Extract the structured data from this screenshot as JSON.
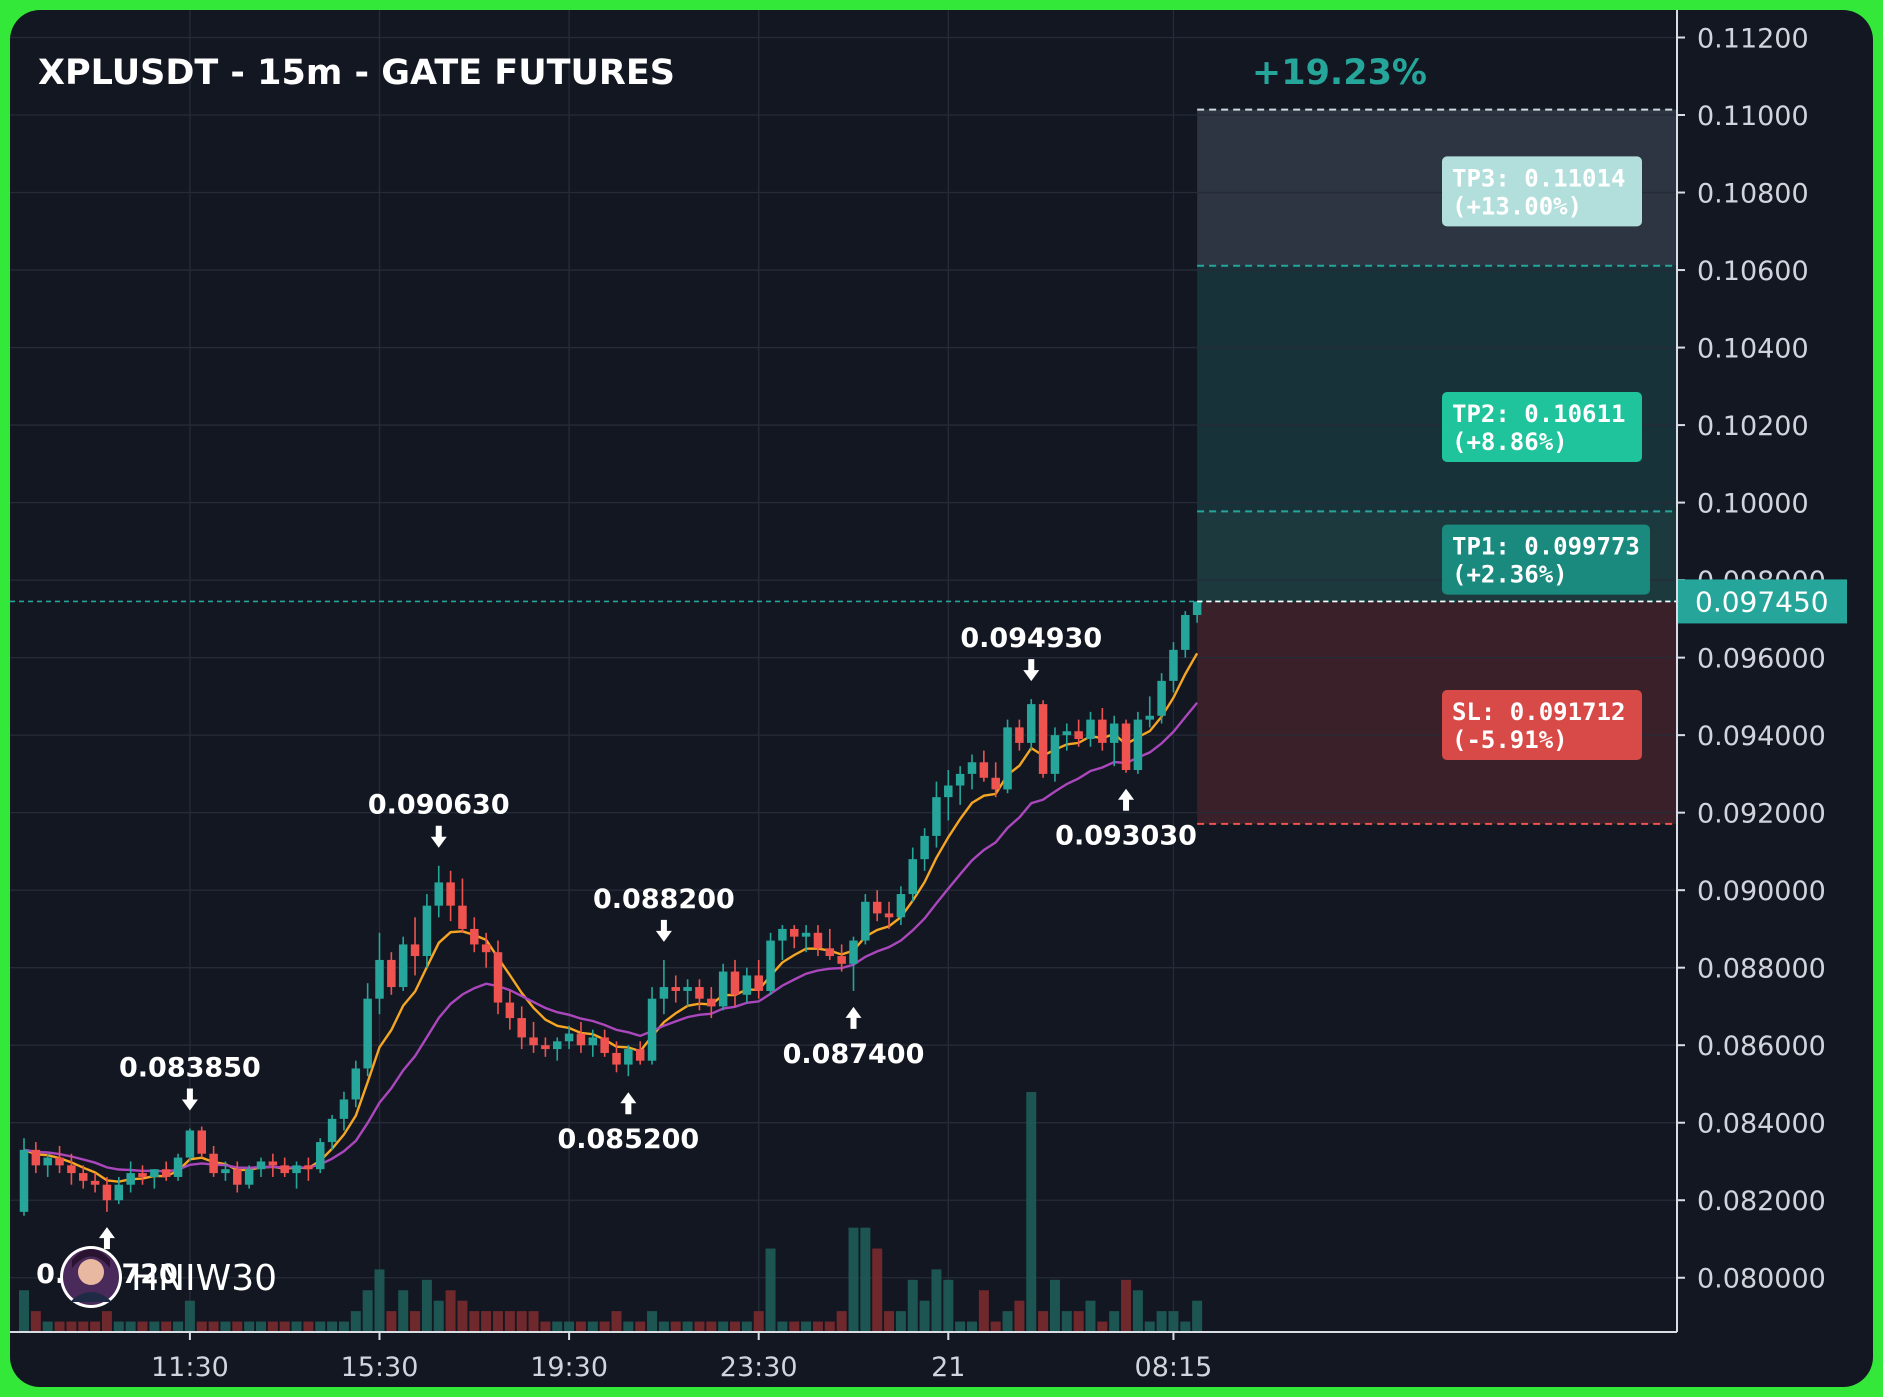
{
  "chart_data": {
    "type": "candlestick",
    "title": "XPLUSDT - 15m - GATE FUTURES",
    "gain_label": "+19.23%",
    "y_ticks": [
      "0.11200",
      "0.11000",
      "0.10800",
      "0.10600",
      "0.10400",
      "0.10200",
      "0.10000",
      "0.098000",
      "0.096000",
      "0.094000",
      "0.092000",
      "0.090000",
      "0.088000",
      "0.086000",
      "0.084000",
      "0.082000",
      "0.080000"
    ],
    "y_tick_values": [
      0.112,
      0.11,
      0.108,
      0.106,
      0.104,
      0.102,
      0.1,
      0.098,
      0.096,
      0.094,
      0.092,
      0.09,
      0.088,
      0.086,
      0.084,
      0.082,
      0.08
    ],
    "ylim": [
      0.0786,
      0.1124
    ],
    "x_ticks": [
      "11:30",
      "15:30",
      "19:30",
      "23:30",
      "21",
      "08:15"
    ],
    "x_tick_index": [
      14,
      30,
      46,
      62,
      78,
      97
    ],
    "last_price": "0.097450",
    "last_price_value": 0.09745,
    "targets": [
      {
        "name": "TP3",
        "line1": "TP3: 0.11014",
        "line2": "(+13.00%)",
        "value": 0.11014
      },
      {
        "name": "TP2",
        "line1": "TP2: 0.10611",
        "line2": "(+8.86%)",
        "value": 0.10611
      },
      {
        "name": "TP1",
        "line1": "TP1: 0.099773",
        "line2": "(+2.36%)",
        "value": 0.099773
      }
    ],
    "stop_loss": {
      "line1": "SL: 0.091712",
      "line2": "(-5.91%)",
      "value": 0.091712
    },
    "pivots": [
      {
        "label": "0.081720",
        "index": 7,
        "type": "low",
        "value": 0.08172
      },
      {
        "label": "0.083850",
        "index": 14,
        "type": "high",
        "value": 0.08385
      },
      {
        "label": "0.090630",
        "index": 35,
        "type": "high",
        "value": 0.09063
      },
      {
        "label": "0.085200",
        "index": 51,
        "type": "low",
        "value": 0.0852
      },
      {
        "label": "0.088200",
        "index": 54,
        "type": "high",
        "value": 0.0882
      },
      {
        "label": "0.087400",
        "index": 70,
        "type": "low",
        "value": 0.0874
      },
      {
        "label": "0.094930",
        "index": 85,
        "type": "high",
        "value": 0.09493
      },
      {
        "label": "0.093030",
        "index": 93,
        "type": "low",
        "value": 0.09303
      }
    ],
    "candles": [
      [
        0.0817,
        0.0836,
        0.0816,
        0.0833
      ],
      [
        0.0833,
        0.0835,
        0.0827,
        0.0829
      ],
      [
        0.0829,
        0.0832,
        0.0826,
        0.0831
      ],
      [
        0.0831,
        0.0834,
        0.0827,
        0.0829
      ],
      [
        0.0829,
        0.0832,
        0.0824,
        0.0827
      ],
      [
        0.0827,
        0.0829,
        0.0823,
        0.0825
      ],
      [
        0.0825,
        0.0827,
        0.0822,
        0.0824
      ],
      [
        0.0824,
        0.0826,
        0.0817,
        0.082
      ],
      [
        0.082,
        0.0826,
        0.0819,
        0.0824
      ],
      [
        0.0824,
        0.083,
        0.0822,
        0.0827
      ],
      [
        0.0827,
        0.0829,
        0.0824,
        0.0826
      ],
      [
        0.0826,
        0.0828,
        0.0823,
        0.0828
      ],
      [
        0.0828,
        0.083,
        0.0825,
        0.0826
      ],
      [
        0.0826,
        0.0832,
        0.0825,
        0.0831
      ],
      [
        0.0831,
        0.08385,
        0.083,
        0.0838
      ],
      [
        0.0838,
        0.0839,
        0.0831,
        0.0832
      ],
      [
        0.0832,
        0.0834,
        0.0826,
        0.0827
      ],
      [
        0.0827,
        0.083,
        0.0825,
        0.0828
      ],
      [
        0.0828,
        0.083,
        0.0822,
        0.0824
      ],
      [
        0.0824,
        0.0829,
        0.0823,
        0.0828
      ],
      [
        0.0828,
        0.0831,
        0.0826,
        0.083
      ],
      [
        0.083,
        0.0832,
        0.0826,
        0.0829
      ],
      [
        0.0829,
        0.0831,
        0.0826,
        0.0827
      ],
      [
        0.0827,
        0.083,
        0.0823,
        0.0829
      ],
      [
        0.0829,
        0.0831,
        0.0825,
        0.0828
      ],
      [
        0.0828,
        0.0836,
        0.0827,
        0.0835
      ],
      [
        0.0835,
        0.0842,
        0.0833,
        0.0841
      ],
      [
        0.0841,
        0.0848,
        0.0838,
        0.0846
      ],
      [
        0.0846,
        0.0856,
        0.0844,
        0.0854
      ],
      [
        0.0854,
        0.0876,
        0.0852,
        0.0872
      ],
      [
        0.0872,
        0.0889,
        0.0868,
        0.0882
      ],
      [
        0.0882,
        0.0884,
        0.0873,
        0.0875
      ],
      [
        0.0875,
        0.0888,
        0.0874,
        0.0886
      ],
      [
        0.0886,
        0.0893,
        0.0878,
        0.0883
      ],
      [
        0.0883,
        0.0899,
        0.088,
        0.0896
      ],
      [
        0.0896,
        0.09063,
        0.0893,
        0.0902
      ],
      [
        0.0902,
        0.0905,
        0.0892,
        0.0896
      ],
      [
        0.0896,
        0.0903,
        0.0889,
        0.089
      ],
      [
        0.089,
        0.0893,
        0.0884,
        0.0886
      ],
      [
        0.0886,
        0.0889,
        0.088,
        0.0884
      ],
      [
        0.0884,
        0.0887,
        0.0868,
        0.0871
      ],
      [
        0.0871,
        0.0874,
        0.0864,
        0.0867
      ],
      [
        0.0867,
        0.087,
        0.0859,
        0.0862
      ],
      [
        0.0862,
        0.0866,
        0.0858,
        0.086
      ],
      [
        0.086,
        0.0862,
        0.0857,
        0.0859
      ],
      [
        0.0859,
        0.0862,
        0.0856,
        0.0861
      ],
      [
        0.0861,
        0.0865,
        0.0859,
        0.0863
      ],
      [
        0.0863,
        0.0866,
        0.0858,
        0.086
      ],
      [
        0.086,
        0.0864,
        0.0857,
        0.0862
      ],
      [
        0.0862,
        0.0864,
        0.0857,
        0.0858
      ],
      [
        0.0858,
        0.0861,
        0.0853,
        0.0855
      ],
      [
        0.0855,
        0.086,
        0.0852,
        0.0859
      ],
      [
        0.0859,
        0.0861,
        0.0855,
        0.0856
      ],
      [
        0.0856,
        0.0875,
        0.0855,
        0.0872
      ],
      [
        0.0872,
        0.0882,
        0.0868,
        0.0875
      ],
      [
        0.0875,
        0.0878,
        0.0871,
        0.0874
      ],
      [
        0.0874,
        0.0877,
        0.087,
        0.0875
      ],
      [
        0.0875,
        0.0877,
        0.0869,
        0.0872
      ],
      [
        0.0872,
        0.0875,
        0.0867,
        0.087
      ],
      [
        0.087,
        0.0881,
        0.0869,
        0.0879
      ],
      [
        0.0879,
        0.0882,
        0.087,
        0.0873
      ],
      [
        0.0873,
        0.088,
        0.0871,
        0.0878
      ],
      [
        0.0878,
        0.0882,
        0.0872,
        0.0874
      ],
      [
        0.0874,
        0.0889,
        0.0873,
        0.0887
      ],
      [
        0.0887,
        0.0891,
        0.0882,
        0.089
      ],
      [
        0.089,
        0.0891,
        0.0885,
        0.0888
      ],
      [
        0.0888,
        0.0891,
        0.0884,
        0.0889
      ],
      [
        0.0889,
        0.0891,
        0.0883,
        0.0885
      ],
      [
        0.0885,
        0.089,
        0.0882,
        0.0883
      ],
      [
        0.0883,
        0.0886,
        0.0879,
        0.0881
      ],
      [
        0.0881,
        0.0888,
        0.0874,
        0.0887
      ],
      [
        0.0887,
        0.0899,
        0.0886,
        0.0897
      ],
      [
        0.0897,
        0.09,
        0.0892,
        0.0894
      ],
      [
        0.0894,
        0.0897,
        0.089,
        0.0893
      ],
      [
        0.0893,
        0.0901,
        0.0891,
        0.0899
      ],
      [
        0.0899,
        0.0911,
        0.0897,
        0.0908
      ],
      [
        0.0908,
        0.0916,
        0.0905,
        0.0914
      ],
      [
        0.0914,
        0.0928,
        0.0911,
        0.0924
      ],
      [
        0.0924,
        0.0931,
        0.0918,
        0.0927
      ],
      [
        0.0927,
        0.0932,
        0.0922,
        0.093
      ],
      [
        0.093,
        0.0935,
        0.0926,
        0.0933
      ],
      [
        0.0933,
        0.0936,
        0.0928,
        0.0929
      ],
      [
        0.0929,
        0.0933,
        0.0924,
        0.0926
      ],
      [
        0.0926,
        0.0944,
        0.0925,
        0.0942
      ],
      [
        0.0942,
        0.0944,
        0.0936,
        0.0938
      ],
      [
        0.0938,
        0.09493,
        0.0936,
        0.0948
      ],
      [
        0.0948,
        0.0949,
        0.0929,
        0.093
      ],
      [
        0.093,
        0.0942,
        0.0928,
        0.094
      ],
      [
        0.094,
        0.0943,
        0.0936,
        0.0941
      ],
      [
        0.0941,
        0.0944,
        0.0937,
        0.0939
      ],
      [
        0.0939,
        0.0946,
        0.0937,
        0.0944
      ],
      [
        0.0944,
        0.0947,
        0.0936,
        0.0938
      ],
      [
        0.0938,
        0.0945,
        0.0932,
        0.0943
      ],
      [
        0.0943,
        0.0944,
        0.09303,
        0.0931
      ],
      [
        0.0931,
        0.0946,
        0.093,
        0.0944
      ],
      [
        0.0944,
        0.095,
        0.0942,
        0.0945
      ],
      [
        0.0945,
        0.0956,
        0.0943,
        0.0954
      ],
      [
        0.0954,
        0.0964,
        0.0951,
        0.0962
      ],
      [
        0.0962,
        0.0972,
        0.096,
        0.0971
      ],
      [
        0.0971,
        0.09745,
        0.0969,
        0.09745
      ]
    ],
    "volumes": [
      4,
      2,
      1,
      1,
      1,
      1,
      1,
      2,
      1,
      1,
      1,
      1,
      1,
      1,
      3,
      1,
      1,
      1,
      1,
      1,
      1,
      1,
      1,
      1,
      1,
      1,
      1,
      1,
      2,
      4,
      6,
      2,
      4,
      2,
      5,
      3,
      4,
      3,
      2,
      2,
      2,
      2,
      2,
      2,
      1,
      1,
      1,
      1,
      1,
      1,
      2,
      1,
      1,
      2,
      1,
      1,
      1,
      1,
      1,
      1,
      1,
      1,
      2,
      8,
      1,
      1,
      1,
      1,
      1,
      2,
      10,
      10,
      8,
      2,
      2,
      5,
      3,
      6,
      5,
      1,
      1,
      4,
      1,
      2,
      3,
      23,
      2,
      5,
      2,
      2,
      3,
      1,
      2,
      5,
      4,
      1,
      2,
      2,
      1,
      3
    ],
    "ema_fast_color": "#f5a623",
    "ema_slow_color": "#ab47bc",
    "bull_color": "#26a69a",
    "bear_color": "#ef5350",
    "tp3_box_color": "#b2dfdb",
    "tp2_box_color": "#1fc49c",
    "tp1_box_color": "#1a8a7e",
    "sl_box_color": "#d84a48",
    "gain_color": "#26a69a"
  },
  "watermark": {
    "name": "HNIW30",
    "avatar_icon": "avatar-icon"
  }
}
